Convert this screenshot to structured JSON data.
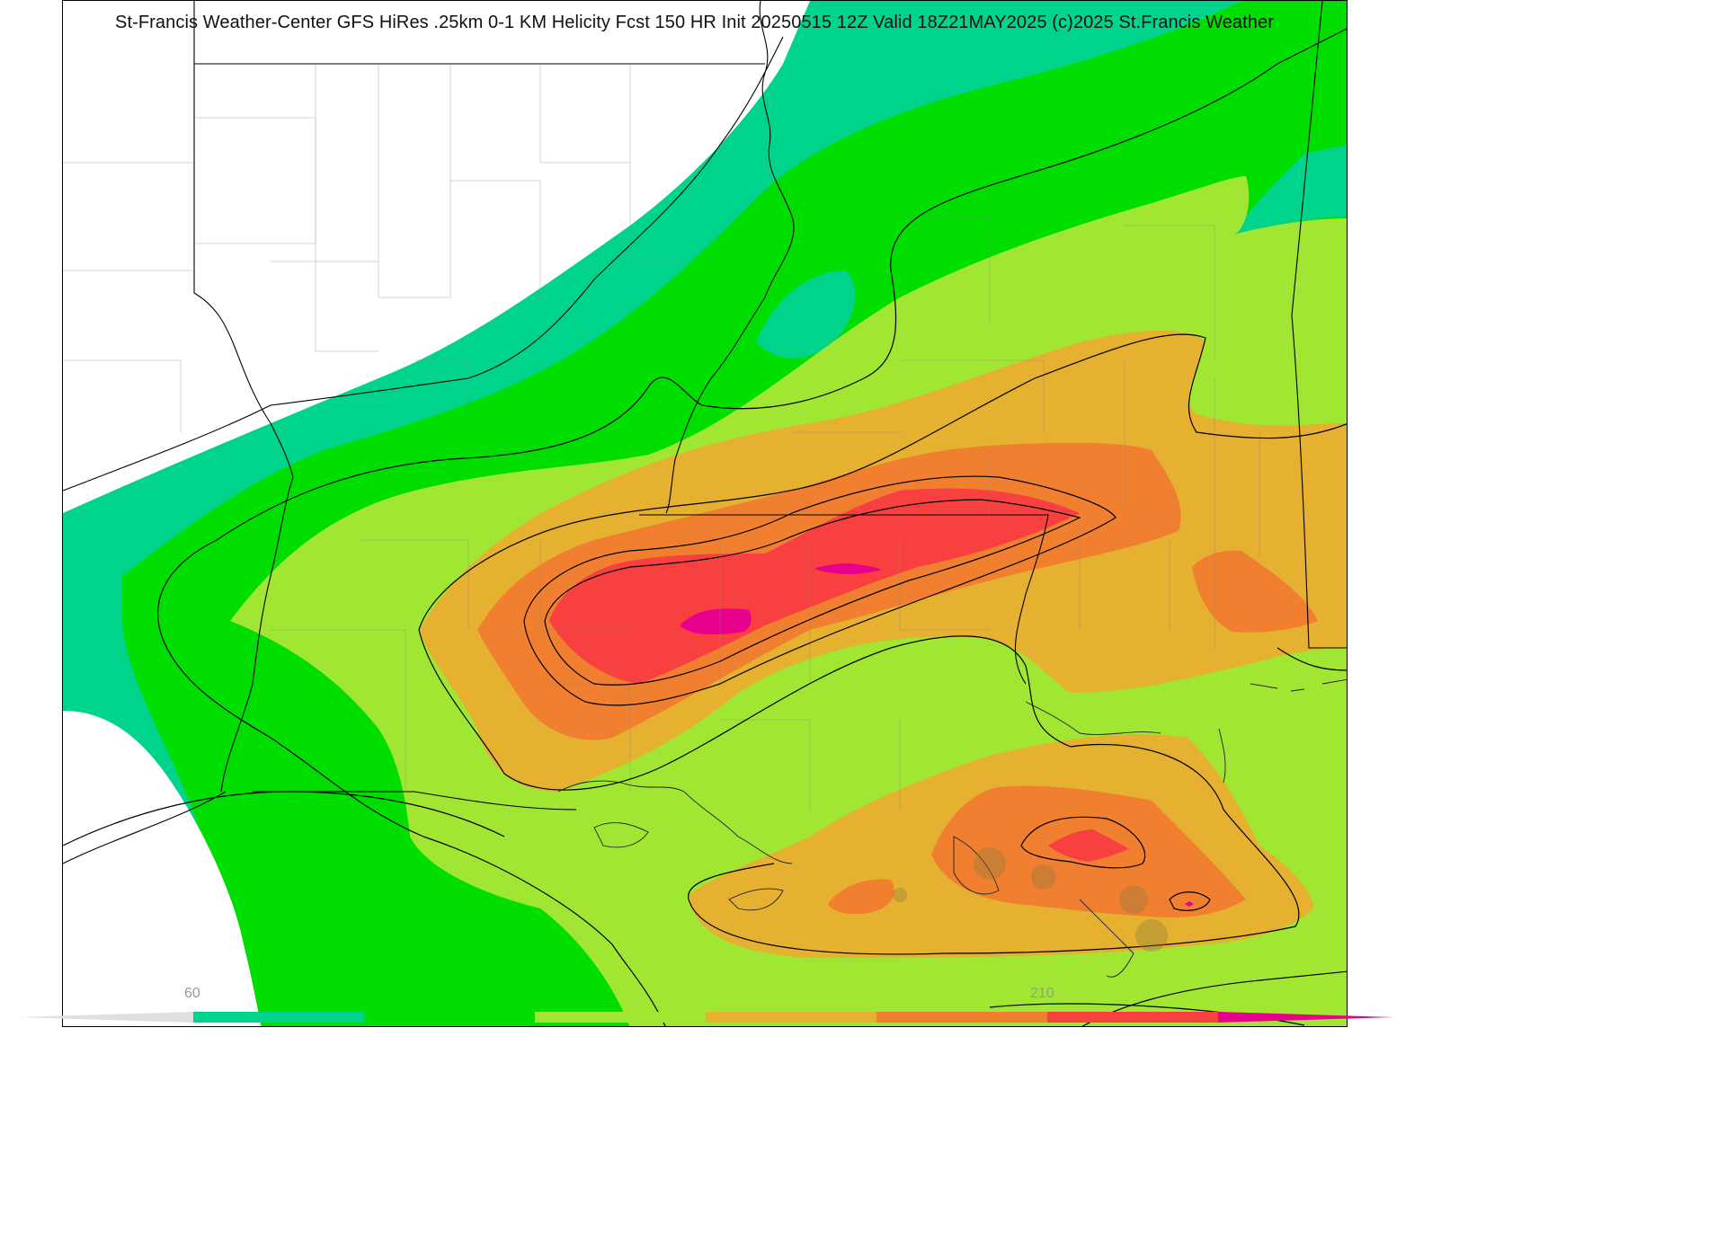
{
  "map": {
    "title": "St-Francis Weather-Center GFS HiRes .25km 0-1 KM Helicity Fcst 150 HR Init 20250515 12Z  Valid 18Z21MAY2025    (c)2025 St.Francis Weather",
    "variable": "0-1 KM Helicity",
    "init": "20250515 12Z",
    "valid": "18Z21MAY2025",
    "forecast_hour": 150
  },
  "colorbar": {
    "labels": [
      {
        "text": "60"
      },
      {
        "text": "210"
      }
    ],
    "colors": [
      "#00d48a",
      "#00dd00",
      "#a0e632",
      "#e6b030",
      "#f08030",
      "#f94040",
      "#e6008c"
    ]
  }
}
